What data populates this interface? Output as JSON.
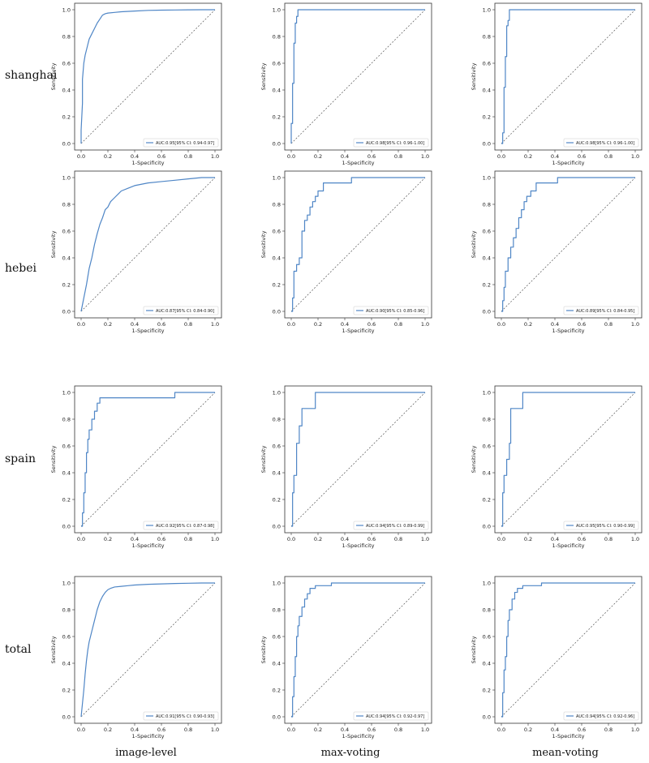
{
  "rows": [
    "shanghai",
    "hebei",
    "spain",
    "total"
  ],
  "columns": [
    "image-level",
    "max-voting",
    "mean-voting"
  ],
  "chart_data": [
    {
      "type": "line",
      "row": "shanghai",
      "column": "image-level",
      "xlabel": "1-Specificity",
      "ylabel": "Sensitivity",
      "xlim": [
        0,
        1
      ],
      "ylim": [
        0,
        1
      ],
      "xticks": [
        "0.0",
        "0.2",
        "0.4",
        "0.6",
        "0.8",
        "1.0"
      ],
      "yticks": [
        "0.0",
        "0.2",
        "0.4",
        "0.6",
        "0.8",
        "1.0"
      ],
      "legend": "AUC:0.95[95% CI: 0.94-0.97]",
      "legend_position": "lower-right",
      "series": [
        {
          "x": [
            0,
            0,
            0.01,
            0.01,
            0.02,
            0.03,
            0.04,
            0.05,
            0.06,
            0.08,
            0.1,
            0.12,
            0.14,
            0.16,
            0.18,
            0.2,
            0.25,
            0.3,
            0.4,
            0.5,
            0.6,
            0.7,
            0.8,
            0.9,
            1.0
          ],
          "y": [
            0,
            0.1,
            0.3,
            0.48,
            0.6,
            0.66,
            0.7,
            0.74,
            0.78,
            0.82,
            0.86,
            0.9,
            0.93,
            0.96,
            0.97,
            0.975,
            0.98,
            0.985,
            0.99,
            0.995,
            0.997,
            0.998,
            0.999,
            1.0,
            1.0
          ]
        }
      ]
    },
    {
      "type": "line",
      "row": "shanghai",
      "column": "max-voting",
      "xlabel": "1-Specificity",
      "ylabel": "Sensitivity",
      "xlim": [
        0,
        1
      ],
      "ylim": [
        0,
        1
      ],
      "xticks": [
        "0.0",
        "0.2",
        "0.4",
        "0.6",
        "0.8",
        "1.0"
      ],
      "yticks": [
        "0.0",
        "0.2",
        "0.4",
        "0.6",
        "0.8",
        "1.0"
      ],
      "legend": "AUC:0.98[95% CI: 0.96-1.00]",
      "legend_position": "lower-right",
      "series": [
        {
          "x": [
            0,
            0,
            0.01,
            0.01,
            0.02,
            0.02,
            0.03,
            0.03,
            0.04,
            0.04,
            0.05,
            0.05,
            1.0
          ],
          "y": [
            0,
            0.15,
            0.15,
            0.45,
            0.45,
            0.75,
            0.75,
            0.9,
            0.9,
            0.95,
            0.95,
            1.0,
            1.0
          ]
        }
      ]
    },
    {
      "type": "line",
      "row": "shanghai",
      "column": "mean-voting",
      "xlabel": "1-Specificity",
      "ylabel": "Sensitivity",
      "xlim": [
        0,
        1
      ],
      "ylim": [
        0,
        1
      ],
      "xticks": [
        "0.0",
        "0.2",
        "0.4",
        "0.6",
        "0.8",
        "1.0"
      ],
      "yticks": [
        "0.0",
        "0.2",
        "0.4",
        "0.6",
        "0.8",
        "1.0"
      ],
      "legend": "AUC:0.98[95% CI: 0.96-1.00]",
      "legend_position": "lower-right",
      "series": [
        {
          "x": [
            0,
            0.01,
            0.01,
            0.02,
            0.02,
            0.03,
            0.03,
            0.04,
            0.04,
            0.05,
            0.05,
            0.06,
            0.06,
            1.0
          ],
          "y": [
            0,
            0,
            0.08,
            0.08,
            0.42,
            0.42,
            0.65,
            0.65,
            0.88,
            0.88,
            0.92,
            0.92,
            1.0,
            1.0
          ]
        }
      ]
    },
    {
      "type": "line",
      "row": "hebei",
      "column": "image-level",
      "xlabel": "1-Specificity",
      "ylabel": "Sensitivity",
      "xlim": [
        0,
        1
      ],
      "ylim": [
        0,
        1
      ],
      "xticks": [
        "0.0",
        "0.2",
        "0.4",
        "0.6",
        "0.8",
        "1.0"
      ],
      "yticks": [
        "0.0",
        "0.2",
        "0.4",
        "0.6",
        "0.8",
        "1.0"
      ],
      "legend": "AUC:0.87[95% CI: 0.84-0.90]",
      "legend_position": "lower-right",
      "series": [
        {
          "x": [
            0,
            0.01,
            0.02,
            0.03,
            0.04,
            0.05,
            0.06,
            0.08,
            0.1,
            0.12,
            0.14,
            0.16,
            0.18,
            0.2,
            0.22,
            0.25,
            0.28,
            0.3,
            0.35,
            0.4,
            0.45,
            0.5,
            0.6,
            0.7,
            0.8,
            0.9,
            1.0
          ],
          "y": [
            0,
            0.05,
            0.1,
            0.15,
            0.2,
            0.26,
            0.32,
            0.4,
            0.5,
            0.58,
            0.65,
            0.7,
            0.76,
            0.78,
            0.82,
            0.85,
            0.88,
            0.9,
            0.92,
            0.94,
            0.95,
            0.96,
            0.97,
            0.98,
            0.99,
            1.0,
            1.0
          ]
        }
      ]
    },
    {
      "type": "line",
      "row": "hebei",
      "column": "max-voting",
      "xlabel": "1-Specificity",
      "ylabel": "Sensitivity",
      "xlim": [
        0,
        1
      ],
      "ylim": [
        0,
        1
      ],
      "xticks": [
        "0.0",
        "0.2",
        "0.4",
        "0.6",
        "0.8",
        "1.0"
      ],
      "yticks": [
        "0.0",
        "0.2",
        "0.4",
        "0.6",
        "0.8",
        "1.0"
      ],
      "legend": "AUC:0.90[95% CI: 0.85-0.96]",
      "legend_position": "lower-right",
      "series": [
        {
          "x": [
            0,
            0.01,
            0.01,
            0.02,
            0.02,
            0.04,
            0.04,
            0.06,
            0.06,
            0.08,
            0.08,
            0.1,
            0.1,
            0.12,
            0.12,
            0.14,
            0.14,
            0.16,
            0.16,
            0.18,
            0.18,
            0.2,
            0.2,
            0.24,
            0.24,
            0.45,
            0.45,
            1.0
          ],
          "y": [
            0,
            0,
            0.1,
            0.1,
            0.3,
            0.3,
            0.35,
            0.35,
            0.4,
            0.4,
            0.6,
            0.6,
            0.68,
            0.68,
            0.72,
            0.72,
            0.78,
            0.78,
            0.82,
            0.82,
            0.86,
            0.86,
            0.9,
            0.9,
            0.96,
            0.96,
            1.0,
            1.0
          ]
        }
      ]
    },
    {
      "type": "line",
      "row": "hebei",
      "column": "mean-voting",
      "xlabel": "1-Specificity",
      "ylabel": "Sensitivity",
      "xlim": [
        0,
        1
      ],
      "ylim": [
        0,
        1
      ],
      "xticks": [
        "0.0",
        "0.2",
        "0.4",
        "0.6",
        "0.8",
        "1.0"
      ],
      "yticks": [
        "0.0",
        "0.2",
        "0.4",
        "0.6",
        "0.8",
        "1.0"
      ],
      "legend": "AUC:0.89[95% CI: 0.84-0.95]",
      "legend_position": "lower-right",
      "series": [
        {
          "x": [
            0,
            0.01,
            0.01,
            0.02,
            0.02,
            0.03,
            0.03,
            0.05,
            0.05,
            0.07,
            0.07,
            0.09,
            0.09,
            0.11,
            0.11,
            0.13,
            0.13,
            0.15,
            0.15,
            0.17,
            0.17,
            0.19,
            0.19,
            0.22,
            0.22,
            0.26,
            0.26,
            0.42,
            0.42,
            1.0
          ],
          "y": [
            0,
            0,
            0.08,
            0.08,
            0.18,
            0.18,
            0.3,
            0.3,
            0.4,
            0.4,
            0.48,
            0.48,
            0.55,
            0.55,
            0.62,
            0.62,
            0.7,
            0.7,
            0.76,
            0.76,
            0.82,
            0.82,
            0.86,
            0.86,
            0.9,
            0.9,
            0.96,
            0.96,
            1.0,
            1.0
          ]
        }
      ]
    },
    {
      "type": "line",
      "row": "spain",
      "column": "image-level",
      "xlabel": "1-Specificity",
      "ylabel": "Sensitivity",
      "xlim": [
        0,
        1
      ],
      "ylim": [
        0,
        1
      ],
      "xticks": [
        "0.0",
        "0.2",
        "0.4",
        "0.6",
        "0.8",
        "1.0"
      ],
      "yticks": [
        "0.0",
        "0.2",
        "0.4",
        "0.6",
        "0.8",
        "1.0"
      ],
      "legend": "AUC:0.92[95% CI: 0.87-0.98]",
      "legend_position": "lower-right",
      "series": [
        {
          "x": [
            0,
            0.01,
            0.01,
            0.02,
            0.02,
            0.03,
            0.03,
            0.04,
            0.04,
            0.05,
            0.05,
            0.06,
            0.06,
            0.08,
            0.08,
            0.1,
            0.1,
            0.12,
            0.12,
            0.14,
            0.14,
            0.7,
            0.7,
            1.0
          ],
          "y": [
            0,
            0,
            0.1,
            0.1,
            0.25,
            0.25,
            0.4,
            0.4,
            0.55,
            0.55,
            0.65,
            0.65,
            0.72,
            0.72,
            0.8,
            0.8,
            0.86,
            0.86,
            0.92,
            0.92,
            0.96,
            0.96,
            1.0,
            1.0
          ]
        }
      ]
    },
    {
      "type": "line",
      "row": "spain",
      "column": "max-voting",
      "xlabel": "1-Specificity",
      "ylabel": "Sensitivity",
      "xlim": [
        0,
        1
      ],
      "ylim": [
        0,
        1
      ],
      "xticks": [
        "0.0",
        "0.2",
        "0.4",
        "0.6",
        "0.8",
        "1.0"
      ],
      "yticks": [
        "0.0",
        "0.2",
        "0.4",
        "0.6",
        "0.8",
        "1.0"
      ],
      "legend": "AUC:0.94[95% CI: 0.89-0.99]",
      "legend_position": "lower-right",
      "series": [
        {
          "x": [
            0,
            0.01,
            0.01,
            0.02,
            0.02,
            0.04,
            0.04,
            0.06,
            0.06,
            0.08,
            0.08,
            0.1,
            0.1,
            0.18,
            0.18,
            1.0
          ],
          "y": [
            0,
            0,
            0.25,
            0.25,
            0.38,
            0.38,
            0.62,
            0.62,
            0.75,
            0.75,
            0.88,
            0.88,
            0.88,
            0.88,
            1.0,
            1.0
          ]
        }
      ]
    },
    {
      "type": "line",
      "row": "spain",
      "column": "mean-voting",
      "xlabel": "1-Specificity",
      "ylabel": "Sensitivity",
      "xlim": [
        0,
        1
      ],
      "ylim": [
        0,
        1
      ],
      "xticks": [
        "0.0",
        "0.2",
        "0.4",
        "0.6",
        "0.8",
        "1.0"
      ],
      "yticks": [
        "0.0",
        "0.2",
        "0.4",
        "0.6",
        "0.8",
        "1.0"
      ],
      "legend": "AUC:0.95[95% CI: 0.90-0.99]",
      "legend_position": "lower-right",
      "series": [
        {
          "x": [
            0,
            0.01,
            0.01,
            0.02,
            0.02,
            0.04,
            0.04,
            0.06,
            0.06,
            0.07,
            0.07,
            0.16,
            0.16,
            1.0
          ],
          "y": [
            0,
            0,
            0.25,
            0.25,
            0.38,
            0.38,
            0.5,
            0.5,
            0.62,
            0.62,
            0.88,
            0.88,
            1.0,
            1.0
          ]
        }
      ]
    },
    {
      "type": "line",
      "row": "total",
      "column": "image-level",
      "xlabel": "1-Specificity",
      "ylabel": "Sensitivity",
      "xlim": [
        0,
        1
      ],
      "ylim": [
        0,
        1
      ],
      "xticks": [
        "0.0",
        "0.2",
        "0.4",
        "0.6",
        "0.8",
        "1.0"
      ],
      "yticks": [
        "0.0",
        "0.2",
        "0.4",
        "0.6",
        "0.8",
        "1.0"
      ],
      "legend": "AUC:0.91[95% CI: 0.90-0.93]",
      "legend_position": "lower-right",
      "series": [
        {
          "x": [
            0,
            0.01,
            0.02,
            0.03,
            0.04,
            0.05,
            0.06,
            0.08,
            0.1,
            0.12,
            0.14,
            0.16,
            0.18,
            0.2,
            0.22,
            0.25,
            0.3,
            0.35,
            0.4,
            0.5,
            0.6,
            0.7,
            0.8,
            0.9,
            1.0
          ],
          "y": [
            0,
            0.1,
            0.2,
            0.32,
            0.42,
            0.5,
            0.56,
            0.64,
            0.72,
            0.8,
            0.86,
            0.9,
            0.93,
            0.95,
            0.96,
            0.97,
            0.975,
            0.98,
            0.985,
            0.99,
            0.993,
            0.996,
            0.998,
            1.0,
            1.0
          ]
        }
      ]
    },
    {
      "type": "line",
      "row": "total",
      "column": "max-voting",
      "xlabel": "1-Specificity",
      "ylabel": "Sensitivity",
      "xlim": [
        0,
        1
      ],
      "ylim": [
        0,
        1
      ],
      "xticks": [
        "0.0",
        "0.2",
        "0.4",
        "0.6",
        "0.8",
        "1.0"
      ],
      "yticks": [
        "0.0",
        "0.2",
        "0.4",
        "0.6",
        "0.8",
        "1.0"
      ],
      "legend": "AUC:0.94[95% CI: 0.92-0.97]",
      "legend_position": "lower-right",
      "series": [
        {
          "x": [
            0,
            0.01,
            0.01,
            0.02,
            0.02,
            0.03,
            0.03,
            0.04,
            0.04,
            0.05,
            0.05,
            0.06,
            0.06,
            0.08,
            0.08,
            0.1,
            0.1,
            0.12,
            0.12,
            0.14,
            0.14,
            0.18,
            0.18,
            0.3,
            0.3,
            1.0
          ],
          "y": [
            0,
            0,
            0.15,
            0.15,
            0.3,
            0.3,
            0.45,
            0.45,
            0.6,
            0.6,
            0.68,
            0.68,
            0.75,
            0.75,
            0.82,
            0.82,
            0.88,
            0.88,
            0.92,
            0.92,
            0.96,
            0.96,
            0.98,
            0.98,
            1.0,
            1.0
          ]
        }
      ]
    },
    {
      "type": "line",
      "row": "total",
      "column": "mean-voting",
      "xlabel": "1-Specificity",
      "ylabel": "Sensitivity",
      "xlim": [
        0,
        1
      ],
      "ylim": [
        0,
        1
      ],
      "xticks": [
        "0.0",
        "0.2",
        "0.4",
        "0.6",
        "0.8",
        "1.0"
      ],
      "yticks": [
        "0.0",
        "0.2",
        "0.4",
        "0.6",
        "0.8",
        "1.0"
      ],
      "legend": "AUC:0.94[95% CI: 0.92-0.96]",
      "legend_position": "lower-right",
      "series": [
        {
          "x": [
            0,
            0.01,
            0.01,
            0.02,
            0.02,
            0.03,
            0.03,
            0.04,
            0.04,
            0.05,
            0.05,
            0.06,
            0.06,
            0.08,
            0.08,
            0.1,
            0.1,
            0.12,
            0.12,
            0.16,
            0.16,
            0.3,
            0.3,
            1.0
          ],
          "y": [
            0,
            0,
            0.18,
            0.18,
            0.35,
            0.35,
            0.45,
            0.45,
            0.6,
            0.6,
            0.72,
            0.72,
            0.8,
            0.8,
            0.88,
            0.88,
            0.93,
            0.93,
            0.96,
            0.96,
            0.98,
            0.98,
            1.0,
            1.0
          ]
        }
      ]
    }
  ],
  "colors": {
    "roc_line": "#4f86c6",
    "diagonal": "#555555",
    "axis": "#333333"
  }
}
